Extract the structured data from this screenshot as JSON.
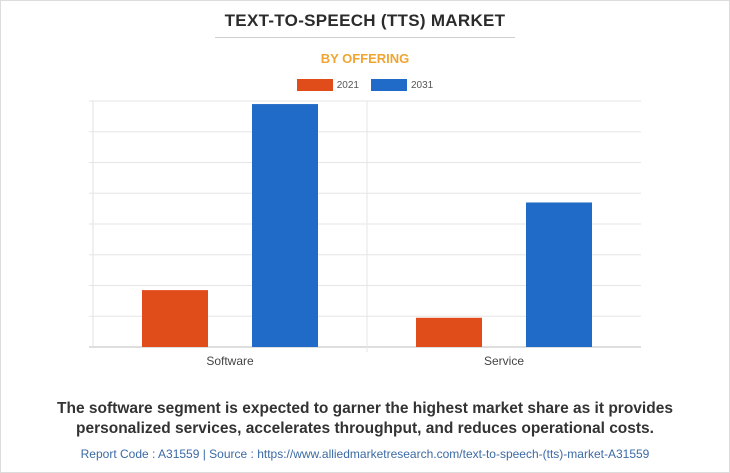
{
  "title": "TEXT-TO-SPEECH (TTS) MARKET",
  "subtitle": "BY OFFERING",
  "legend": [
    "2021",
    "2031"
  ],
  "colors": {
    "2021": "#e04c1a",
    "2031": "#1f6bc7",
    "subtitle": "#f0a531",
    "footer": "#3b6aa5"
  },
  "chart_data": {
    "type": "bar",
    "categories": [
      "Software",
      "Service"
    ],
    "series": [
      {
        "name": "2021",
        "values": [
          1.85,
          0.95
        ]
      },
      {
        "name": "2031",
        "values": [
          7.9,
          4.7
        ]
      }
    ],
    "ylim": [
      0,
      8
    ],
    "grid": true,
    "legend_position": "top-center"
  },
  "caption": "The software segment is expected to garner the highest market share as it provides personalized services, accelerates throughput, and reduces operational costs.",
  "footer": "Report Code : A31559  |  Source : https://www.alliedmarketresearch.com/text-to-speech-(tts)-market-A31559"
}
